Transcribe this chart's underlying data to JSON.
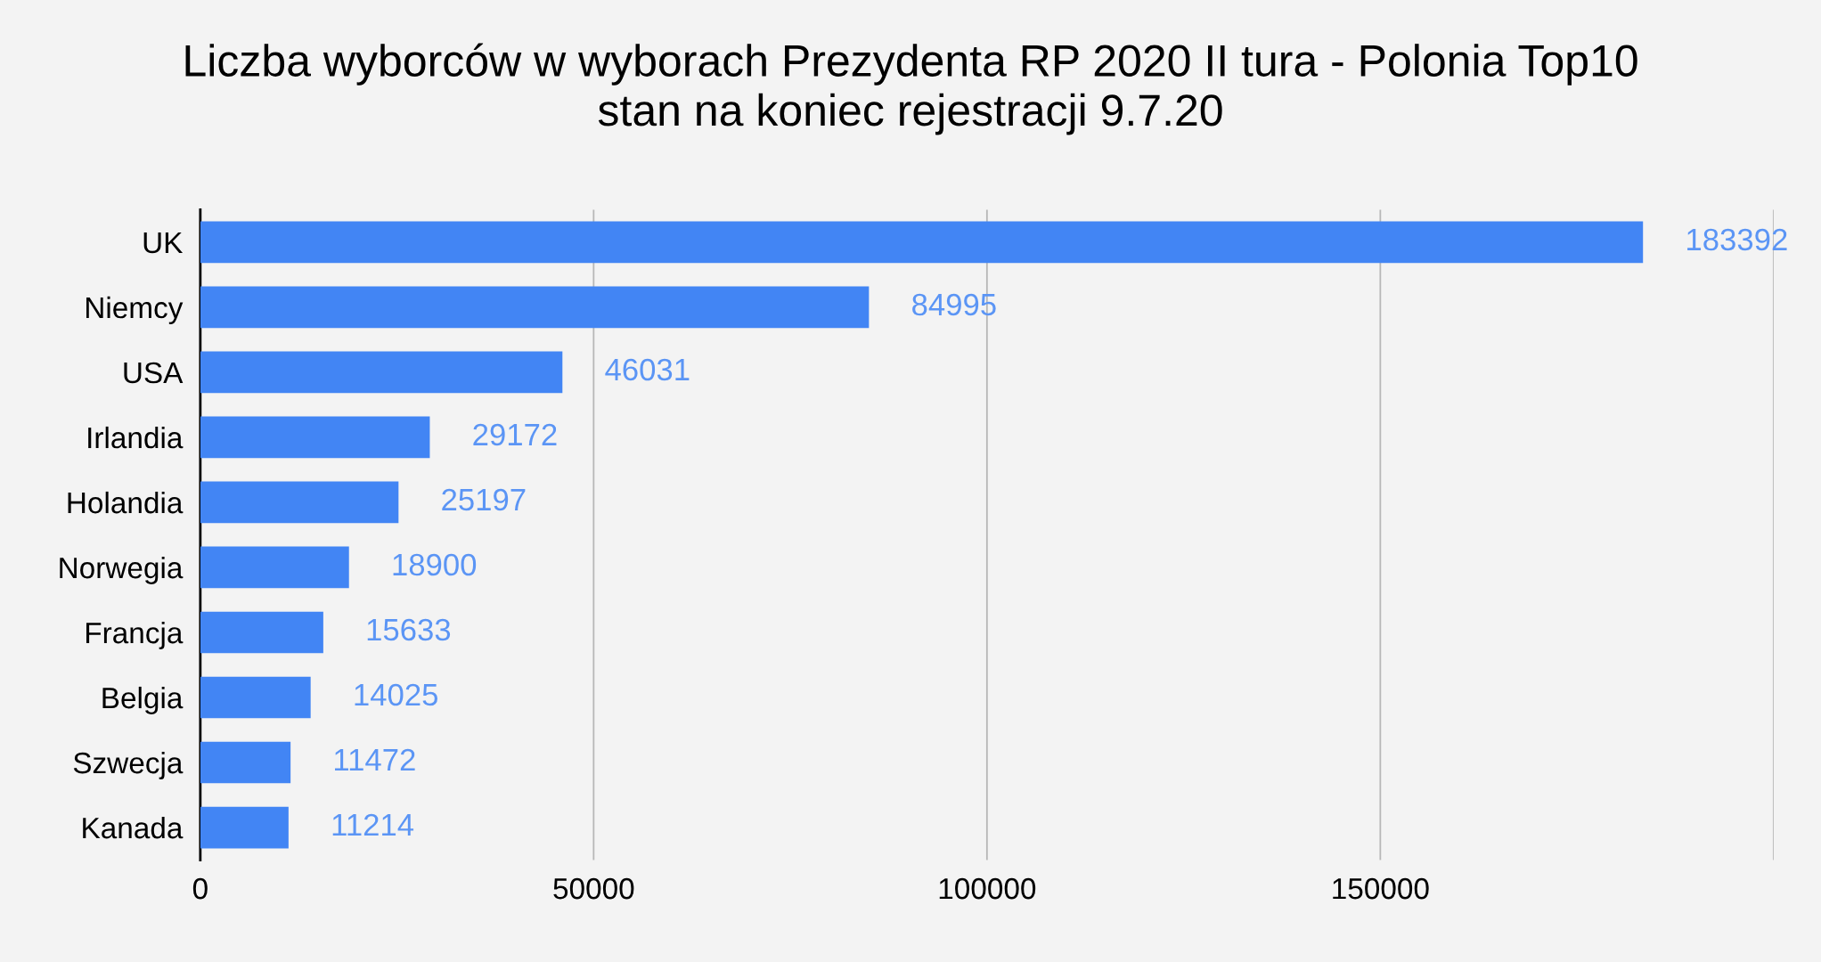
{
  "chart_data": {
    "type": "bar",
    "orientation": "horizontal",
    "title": "Liczba wyborców w wyborach Prezydenta RP 2020 II tura - Polonia Top10\nstan na koniec rejestracji 9.7.20",
    "categories": [
      "UK",
      "Niemcy",
      "USA",
      "Irlandia",
      "Holandia",
      "Norwegia",
      "Francja",
      "Belgia",
      "Szwecja",
      "Kanada"
    ],
    "values": [
      183392,
      84995,
      46031,
      29172,
      25197,
      18900,
      15633,
      14025,
      11472,
      11214
    ],
    "color": "#4285f4",
    "xlim": [
      0,
      200000
    ],
    "xticks": [
      0,
      50000,
      100000,
      150000,
      {
        "value": 200000,
        "label": null
      }
    ],
    "grid": "x",
    "data_labels": true
  }
}
